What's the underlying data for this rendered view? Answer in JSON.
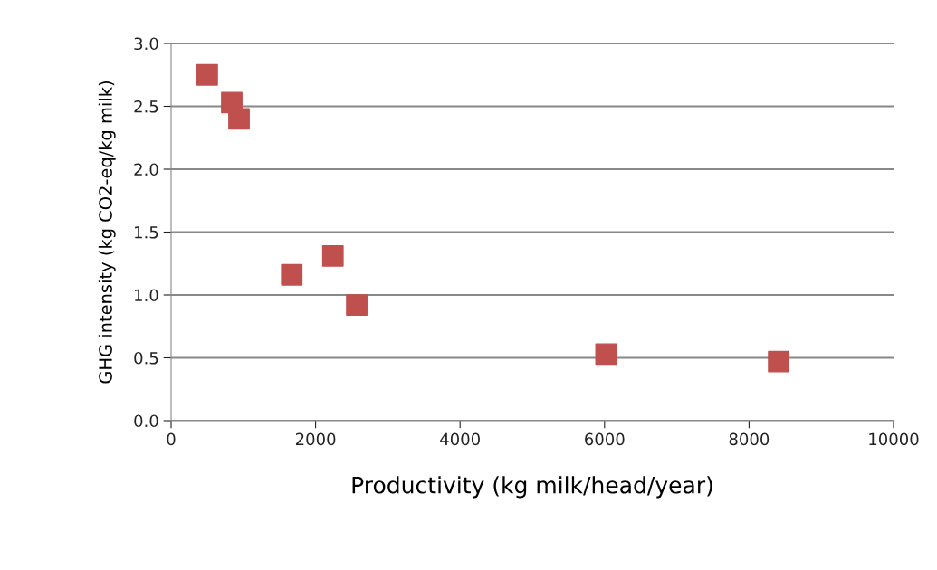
{
  "chart_data": {
    "type": "scatter",
    "xlabel": "Productivity (kg milk/head/year)",
    "ylabel": "GHG intensity (kg CO2-eq/kg milk)",
    "x": [
      500,
      840,
      940,
      1670,
      2240,
      2570,
      6020,
      8410
    ],
    "series": [
      {
        "color": "#c0504d",
        "values": [
          2.75,
          2.53,
          2.4,
          1.16,
          1.31,
          0.92,
          0.53,
          0.47
        ]
      }
    ],
    "xlim": [
      0,
      10000
    ],
    "xticks": [
      0,
      2000,
      4000,
      6000,
      8000,
      10000
    ],
    "ylim": [
      0,
      3.0
    ],
    "yticks": [
      {
        "value": 0,
        "label": "0.0"
      },
      {
        "value": 0.5,
        "label": "0.5"
      },
      {
        "value": 1.0,
        "label": "1.0"
      },
      {
        "value": 1.5,
        "label": "1.5"
      },
      {
        "value": 2.0,
        "label": "2.0"
      },
      {
        "value": 2.5,
        "label": "2.5"
      },
      {
        "value": 3.0,
        "label": "3.0"
      }
    ],
    "grid": "y",
    "marker": "square",
    "legend": false
  }
}
